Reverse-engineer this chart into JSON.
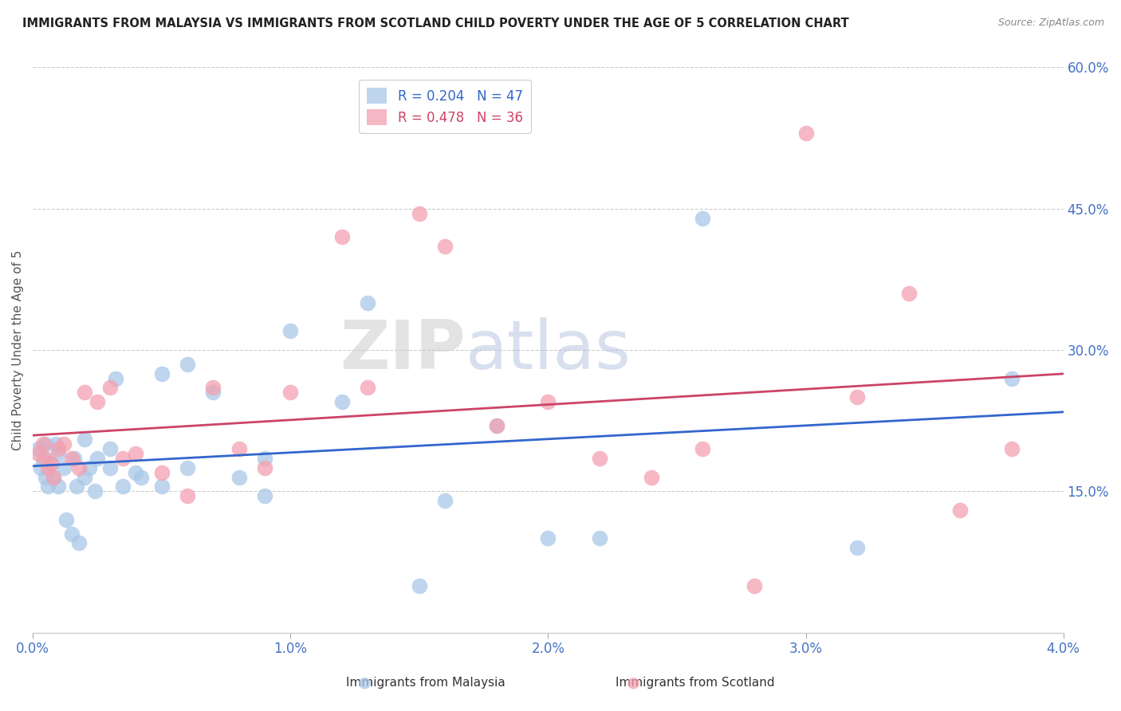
{
  "title": "IMMIGRANTS FROM MALAYSIA VS IMMIGRANTS FROM SCOTLAND CHILD POVERTY UNDER THE AGE OF 5 CORRELATION CHART",
  "source": "Source: ZipAtlas.com",
  "ylabel": "Child Poverty Under the Age of 5",
  "xlim": [
    0.0,
    0.04
  ],
  "ylim": [
    0.0,
    0.6
  ],
  "xticks": [
    0.0,
    0.01,
    0.02,
    0.03,
    0.04
  ],
  "xtick_labels": [
    "0.0%",
    "1.0%",
    "2.0%",
    "3.0%",
    "4.0%"
  ],
  "yticks_right": [
    0.6,
    0.45,
    0.3,
    0.15
  ],
  "ytick_labels_right": [
    "60.0%",
    "45.0%",
    "30.0%",
    "15.0%"
  ],
  "malaysia_color": "#a8c8e8",
  "scotland_color": "#f4a0b0",
  "malaysia_line_color": "#3366cc",
  "scotland_line_color": "#cc4466",
  "malaysia_R": 0.204,
  "malaysia_N": 47,
  "scotland_R": 0.478,
  "scotland_N": 36,
  "legend_label_malaysia": "Immigrants from Malaysia",
  "legend_label_scotland": "Immigrants from Scotland",
  "watermark_zip": "ZIP",
  "watermark_atlas": "atlas",
  "background_color": "#ffffff",
  "malaysia_x": [
    0.0002,
    0.0003,
    0.0004,
    0.0005,
    0.0005,
    0.0006,
    0.0007,
    0.0008,
    0.0009,
    0.001,
    0.001,
    0.0012,
    0.0013,
    0.0015,
    0.0016,
    0.0017,
    0.0018,
    0.002,
    0.002,
    0.0022,
    0.0024,
    0.0025,
    0.003,
    0.003,
    0.0032,
    0.0035,
    0.004,
    0.0042,
    0.005,
    0.005,
    0.006,
    0.006,
    0.007,
    0.008,
    0.009,
    0.009,
    0.01,
    0.012,
    0.013,
    0.015,
    0.016,
    0.018,
    0.02,
    0.022,
    0.026,
    0.032,
    0.038
  ],
  "malaysia_y": [
    0.195,
    0.175,
    0.185,
    0.2,
    0.165,
    0.155,
    0.18,
    0.165,
    0.2,
    0.155,
    0.19,
    0.175,
    0.12,
    0.105,
    0.185,
    0.155,
    0.095,
    0.165,
    0.205,
    0.175,
    0.15,
    0.185,
    0.175,
    0.195,
    0.27,
    0.155,
    0.17,
    0.165,
    0.275,
    0.155,
    0.285,
    0.175,
    0.255,
    0.165,
    0.185,
    0.145,
    0.32,
    0.245,
    0.35,
    0.05,
    0.14,
    0.22,
    0.1,
    0.1,
    0.44,
    0.09,
    0.27
  ],
  "scotland_x": [
    0.0002,
    0.0004,
    0.0005,
    0.0006,
    0.0007,
    0.0008,
    0.001,
    0.0012,
    0.0015,
    0.0018,
    0.002,
    0.0025,
    0.003,
    0.0035,
    0.004,
    0.005,
    0.006,
    0.007,
    0.008,
    0.009,
    0.01,
    0.012,
    0.013,
    0.015,
    0.016,
    0.018,
    0.02,
    0.022,
    0.024,
    0.026,
    0.028,
    0.03,
    0.032,
    0.034,
    0.036,
    0.038
  ],
  "scotland_y": [
    0.19,
    0.2,
    0.185,
    0.175,
    0.18,
    0.165,
    0.195,
    0.2,
    0.185,
    0.175,
    0.255,
    0.245,
    0.26,
    0.185,
    0.19,
    0.17,
    0.145,
    0.26,
    0.195,
    0.175,
    0.255,
    0.42,
    0.26,
    0.445,
    0.41,
    0.22,
    0.245,
    0.185,
    0.165,
    0.195,
    0.05,
    0.53,
    0.25,
    0.36,
    0.13,
    0.195
  ]
}
